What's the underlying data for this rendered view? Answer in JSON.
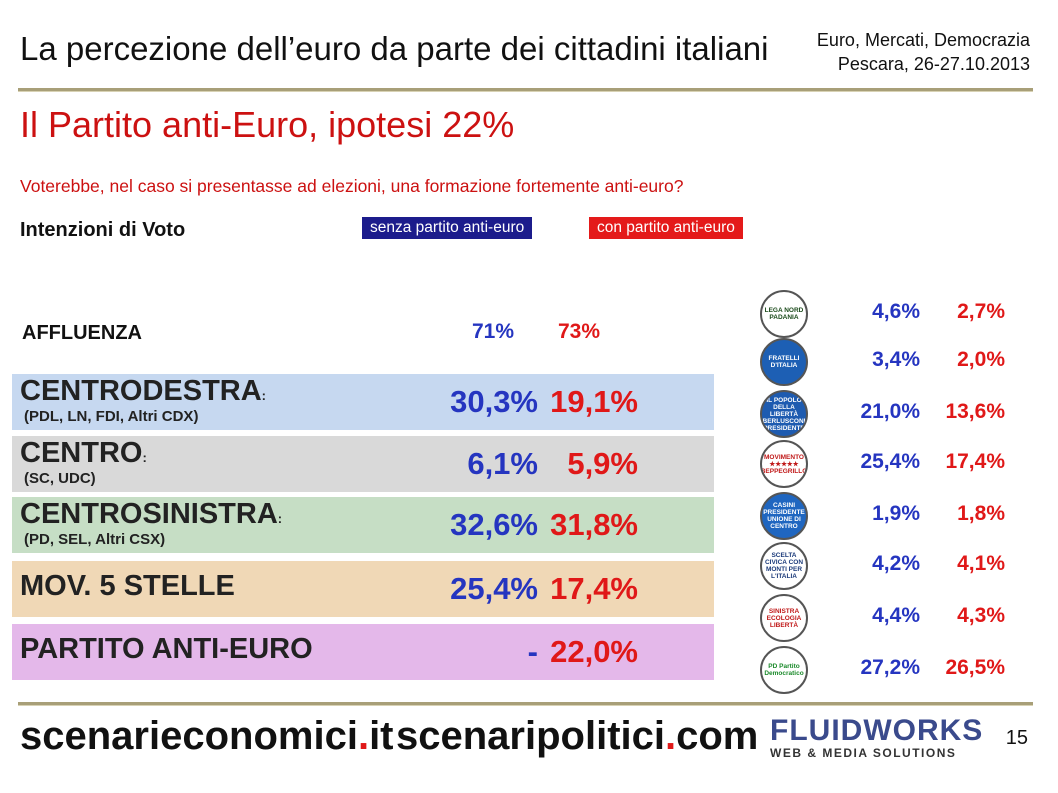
{
  "header": {
    "title": "La percezione dell’euro da parte dei cittadini italiani",
    "event_line1": "Euro, Mercati, Democrazia",
    "event_line2": "Pescara, 26-27.10.2013",
    "subtitle": "Il Partito anti-Euro, ipotesi 22%",
    "question": "Voterebbe, nel caso si presentasse ad elezioni, una formazione fortemente anti-euro?"
  },
  "legend": {
    "section_label": "Intenzioni di Voto",
    "without": "senza partito anti-euro",
    "with": "con partito anti-euro"
  },
  "colors": {
    "without": "#2535c0",
    "with": "#e01818",
    "cdx_bg": "#c6d8f0",
    "centro_bg": "#d9d9d9",
    "csx_bg": "#c6dec5",
    "m5s_bg": "#f0d8b6",
    "antieuro_bg": "#e4b8ea"
  },
  "chart_data": {
    "type": "table",
    "affluenza": {
      "label": "AFFLUENZA",
      "without": "71%",
      "with": "73%"
    },
    "coalitions": [
      {
        "name": "CENTRODESTRA",
        "colon": ":",
        "detail": "(PDL, LN, FDI, Altri CDX)",
        "without": "30,3%",
        "with": "19,1%"
      },
      {
        "name": "CENTRO",
        "colon": ":",
        "detail": "(SC, UDC)",
        "without": "6,1%",
        "with": "5,9%"
      },
      {
        "name": "CENTROSINISTRA",
        "colon": ":",
        "detail": "(PD, SEL, Altri CSX)",
        "without": "32,6%",
        "with": "31,8%"
      },
      {
        "name": "MOV. 5 STELLE",
        "colon": "",
        "detail": "",
        "without": "25,4%",
        "with": "17,4%"
      },
      {
        "name": "PARTITO ANTI-EURO",
        "colon": "",
        "detail": "",
        "without": "-",
        "with": "22,0%"
      }
    ],
    "parties": [
      {
        "logo": "lega-nord-logo",
        "logo_text": "LEGA NORD PADANIA",
        "without": "4,6%",
        "with": "2,7%"
      },
      {
        "logo": "fratelli-italia-logo",
        "logo_text": "FRATELLI D'ITALIA",
        "without": "3,4%",
        "with": "2,0%"
      },
      {
        "logo": "pdl-logo",
        "logo_text": "IL POPOLO DELLA LIBERTÀ BERLUSCONI PRESIDENTE",
        "without": "21,0%",
        "with": "13,6%"
      },
      {
        "logo": "m5s-logo",
        "logo_text": "MOVIMENTO ★★★★★ BEPPEGRILLO",
        "without": "25,4%",
        "with": "17,4%"
      },
      {
        "logo": "udc-logo",
        "logo_text": "CASINI PRESIDENTE UNIONE DI CENTRO",
        "without": "1,9%",
        "with": "1,8%"
      },
      {
        "logo": "scelta-civica-logo",
        "logo_text": "SCELTA CIVICA CON MONTI PER L'ITALIA",
        "without": "4,2%",
        "with": "4,1%"
      },
      {
        "logo": "sel-logo",
        "logo_text": "SINISTRA ECOLOGIA LIBERTÀ",
        "without": "4,4%",
        "with": "4,3%"
      },
      {
        "logo": "pd-logo",
        "logo_text": "PD Partito Democratico",
        "without": "27,2%",
        "with": "26,5%"
      }
    ]
  },
  "footer": {
    "site1_main": "scenarieconomici",
    "site1_dot": ".",
    "site1_tld": "it",
    "site2_main": "scenaripolitici",
    "site2_dot": ".",
    "site2_tld": "com",
    "brand": "FLUIDWORKS",
    "brand_sub": "WEB & MEDIA SOLUTIONS",
    "page_number": "15"
  }
}
